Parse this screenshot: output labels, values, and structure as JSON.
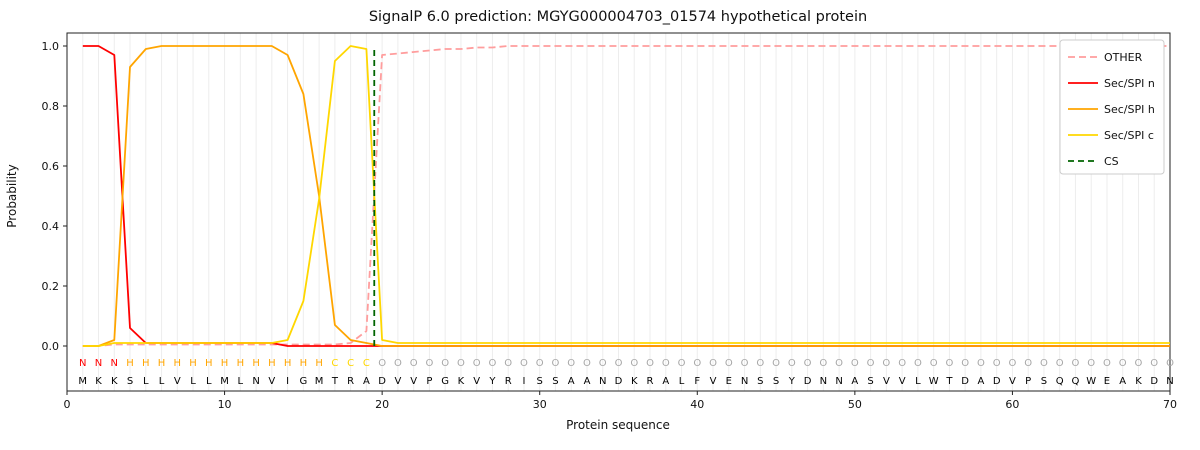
{
  "chart_data": {
    "type": "line",
    "title": "SignalP 6.0 prediction: MGYG000004703_01574 hypothetical protein",
    "xlabel": "Protein sequence",
    "ylabel": "Probability",
    "xlim": [
      0,
      70
    ],
    "ylim": [
      0.0,
      1.0
    ],
    "xticks": [
      0,
      10,
      20,
      30,
      40,
      50,
      60,
      70
    ],
    "yticks": [
      0.0,
      0.2,
      0.4,
      0.6,
      0.8,
      1.0
    ],
    "grid": "vertical-minor-per-residue",
    "legend_position": "upper right",
    "x": [
      1,
      2,
      3,
      4,
      5,
      6,
      7,
      8,
      9,
      10,
      11,
      12,
      13,
      14,
      15,
      16,
      17,
      18,
      19,
      20,
      21,
      22,
      23,
      24,
      25,
      26,
      27,
      28,
      29,
      30,
      31,
      32,
      33,
      34,
      35,
      36,
      37,
      38,
      39,
      40,
      41,
      42,
      43,
      44,
      45,
      46,
      47,
      48,
      49,
      50,
      51,
      52,
      53,
      54,
      55,
      56,
      57,
      58,
      59,
      60,
      61,
      62,
      63,
      64,
      65,
      66,
      67,
      68,
      69,
      70
    ],
    "series": [
      {
        "name": "OTHER",
        "color": "#ff9d9d",
        "dash": "7 4",
        "values": [
          0,
          0,
          0.005,
          0.005,
          0.005,
          0.005,
          0.005,
          0.005,
          0.005,
          0.005,
          0.005,
          0.005,
          0.005,
          0.005,
          0.005,
          0.005,
          0.005,
          0.01,
          0.05,
          0.97,
          0.975,
          0.98,
          0.985,
          0.99,
          0.99,
          0.995,
          0.995,
          1.0,
          1.0,
          1.0,
          1.0,
          1.0,
          1.0,
          1.0,
          1.0,
          1.0,
          1.0,
          1.0,
          1.0,
          1.0,
          1.0,
          1.0,
          1.0,
          1.0,
          1.0,
          1.0,
          1.0,
          1.0,
          1.0,
          1.0,
          1.0,
          1.0,
          1.0,
          1.0,
          1.0,
          1.0,
          1.0,
          1.0,
          1.0,
          1.0,
          1.0,
          1.0,
          1.0,
          1.0,
          1.0,
          1.0,
          1.0,
          1.0,
          1.0,
          1.0
        ]
      },
      {
        "name": "Sec/SPI n",
        "color": "#ff0000",
        "dash": null,
        "values": [
          1.0,
          1.0,
          0.97,
          0.06,
          0.01,
          0.01,
          0.01,
          0.01,
          0.01,
          0.01,
          0.01,
          0.01,
          0.01,
          0,
          0,
          0,
          0,
          0,
          0,
          0,
          0,
          0,
          0,
          0,
          0,
          0,
          0,
          0,
          0,
          0,
          0,
          0,
          0,
          0,
          0,
          0,
          0,
          0,
          0,
          0,
          0,
          0,
          0,
          0,
          0,
          0,
          0,
          0,
          0,
          0,
          0,
          0,
          0,
          0,
          0,
          0,
          0,
          0,
          0,
          0,
          0,
          0,
          0,
          0,
          0,
          0,
          0,
          0,
          0,
          0
        ]
      },
      {
        "name": "Sec/SPI h",
        "color": "#ffa500",
        "dash": null,
        "values": [
          0,
          0,
          0.02,
          0.93,
          0.99,
          1.0,
          1.0,
          1.0,
          1.0,
          1.0,
          1.0,
          1.0,
          1.0,
          0.97,
          0.84,
          0.5,
          0.07,
          0.02,
          0.01,
          0,
          0,
          0,
          0,
          0,
          0,
          0,
          0,
          0,
          0,
          0,
          0,
          0,
          0,
          0,
          0,
          0,
          0,
          0,
          0,
          0,
          0,
          0,
          0,
          0,
          0,
          0,
          0,
          0,
          0,
          0,
          0,
          0,
          0,
          0,
          0,
          0,
          0,
          0,
          0,
          0,
          0,
          0,
          0,
          0,
          0,
          0,
          0,
          0,
          0,
          0
        ]
      },
      {
        "name": "Sec/SPI c",
        "color": "#ffd700",
        "dash": null,
        "values": [
          0,
          0,
          0.01,
          0.01,
          0.01,
          0.01,
          0.01,
          0.01,
          0.01,
          0.01,
          0.01,
          0.01,
          0.01,
          0.02,
          0.15,
          0.49,
          0.95,
          1.0,
          0.99,
          0.02,
          0.01,
          0.01,
          0.01,
          0.01,
          0.01,
          0.01,
          0.01,
          0.01,
          0.01,
          0.01,
          0.01,
          0.01,
          0.01,
          0.01,
          0.01,
          0.01,
          0.01,
          0.01,
          0.01,
          0.01,
          0.01,
          0.01,
          0.01,
          0.01,
          0.01,
          0.01,
          0.01,
          0.01,
          0.01,
          0.01,
          0.01,
          0.01,
          0.01,
          0.01,
          0.01,
          0.01,
          0.01,
          0.01,
          0.01,
          0.01,
          0.01,
          0.01,
          0.01,
          0.01,
          0.01,
          0.01,
          0.01,
          0.01,
          0.01,
          0.01
        ]
      }
    ],
    "cs_line": {
      "name": "CS",
      "position": 19.5,
      "color": "#006400",
      "dash": "6 4"
    },
    "legend": [
      "OTHER",
      "Sec/SPI n",
      "Sec/SPI h",
      "Sec/SPI c",
      "CS"
    ],
    "sequence": "MKKSLLVLLMLNVIGMTRADVVPGKVYRISSAANDKRALFVENSSYDNNASVVLWTDADVPSQQWEAKDN",
    "regions": [
      {
        "label": "N",
        "color": "#ff0000",
        "start": 1,
        "end": 3
      },
      {
        "label": "H",
        "color": "#ffa500",
        "start": 4,
        "end": 16
      },
      {
        "label": "C",
        "color": "#ffd700",
        "start": 17,
        "end": 19
      },
      {
        "label": "O",
        "color": "#a8a8a8",
        "start": 20,
        "end": 70
      }
    ]
  }
}
